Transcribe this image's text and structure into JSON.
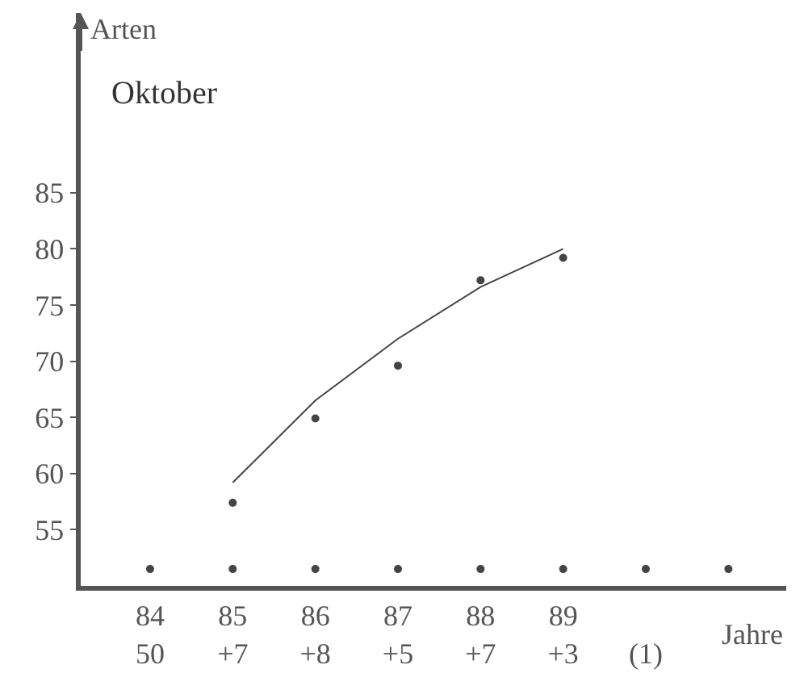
{
  "chart_data": {
    "type": "scatter",
    "title": "Oktober",
    "ylabel": "Arten",
    "xlabel": "Jahre",
    "categories": [
      "84\n50",
      "85\n+7",
      "86\n+8",
      "87\n+5",
      "88\n+7",
      "89\n+3",
      "\n(1)",
      null
    ],
    "ylim": [
      50,
      101
    ],
    "yticks": [
      55,
      60,
      65,
      70,
      75,
      80,
      85
    ],
    "grid": false,
    "legend": false,
    "series": [
      {
        "color": "#444444",
        "marker": "circle",
        "values": [
          51.5,
          51.5,
          51.5,
          51.5,
          51.5,
          51.5,
          51.5,
          51.5
        ]
      },
      {
        "color": "#444444",
        "marker": "circle",
        "values": [
          null,
          57.4,
          64.9,
          69.6,
          77.2,
          79.2,
          null,
          null
        ]
      },
      {
        "type": "line",
        "color": "#444444",
        "marker": "none",
        "line_style": "solid",
        "x": [
          "85\n+7",
          "86\n+8",
          "87\n+5",
          "88\n+7",
          "89\n+3"
        ],
        "values": [
          59.2,
          66.5,
          72,
          76.6,
          80
        ]
      }
    ]
  }
}
